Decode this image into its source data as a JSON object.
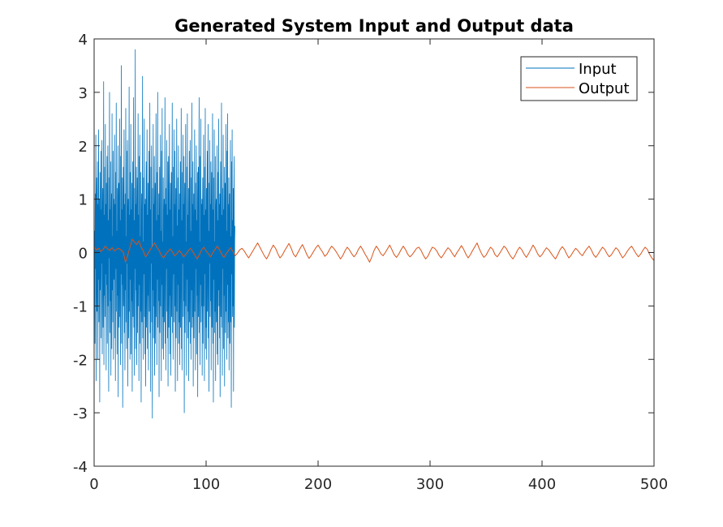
{
  "chart_data": {
    "type": "line",
    "title": "Generated System Input and Output data",
    "xlabel": "",
    "ylabel": "",
    "xlim": [
      0,
      500
    ],
    "ylim": [
      -4,
      4
    ],
    "x_ticks": [
      0,
      100,
      200,
      300,
      400,
      500
    ],
    "x_tick_labels": [
      "0",
      "100",
      "200",
      "300",
      "400",
      "500"
    ],
    "y_ticks": [
      -4,
      -3,
      -2,
      -1,
      0,
      1,
      2,
      3,
      4
    ],
    "y_tick_labels": [
      "-4",
      "-3",
      "-2",
      "-1",
      "0",
      "1",
      "2",
      "3",
      "4"
    ],
    "grid": false,
    "legend_position": "top-right",
    "legend": [
      "Input",
      "Output"
    ],
    "series": [
      {
        "name": "Input",
        "color": "#0072BD",
        "description_points": "approx. white-noise samples, amplitude mostly within ±2, peaks near 3.8",
        "x_start": 0,
        "x_step": 0.25,
        "values": [
          1.8,
          -0.9,
          0.4,
          -1.7,
          1.1,
          -0.3,
          2.2,
          -2.4,
          0.6,
          1.4,
          -1.1,
          0.2,
          1.7,
          -2.0,
          0.9,
          -0.5,
          2.3,
          -1.3,
          0.1,
          1.0,
          -2.8,
          1.5,
          -0.7,
          0.3,
          1.9,
          -1.6,
          0.8,
          -0.2,
          2.1,
          -1.9,
          0.5,
          1.2,
          -1.4,
          0.0,
          3.2,
          -2.1,
          0.7,
          -0.8,
          1.6,
          -1.2,
          2.4,
          -0.4,
          0.9,
          -2.2,
          1.3,
          -0.6,
          1.8,
          -1.7,
          0.2,
          2.0,
          -1.0,
          0.6,
          -2.6,
          1.4,
          -0.1,
          3.0,
          -1.5,
          0.8,
          -0.9,
          1.7,
          -2.3,
          0.4,
          1.1,
          -1.8,
          2.6,
          -0.7,
          0.3,
          -1.3,
          1.9,
          -2.0,
          0.6,
          1.0,
          -0.5,
          2.2,
          -1.6,
          0.9,
          -2.4,
          1.5,
          -0.3,
          2.8,
          -1.1,
          0.4,
          -1.9,
          1.2,
          -0.8,
          2.0,
          -2.7,
          0.7,
          1.3,
          -1.4,
          0.1,
          2.5,
          -1.2,
          0.6,
          -2.1,
          1.8,
          -0.4,
          3.5,
          -1.7,
          0.8,
          -0.6,
          1.4,
          -2.9,
          0.5,
          1.6,
          -1.0,
          0.2,
          2.3,
          -1.5,
          0.9,
          -2.2,
          1.1,
          -0.7,
          2.7,
          -1.3,
          0.3,
          -1.8,
          1.9,
          -0.2,
          2.1,
          -2.5,
          0.6,
          1.0,
          -1.6,
          0.4,
          3.1,
          -1.1,
          0.7,
          -2.0,
          1.5,
          -0.5,
          2.4,
          -1.9,
          0.8,
          -0.9,
          1.3,
          -2.6,
          0.2,
          1.7,
          -1.2,
          0.5,
          2.9,
          -1.4,
          0.6,
          -2.3,
          1.2,
          -0.3,
          3.8,
          -1.8,
          0.9,
          -0.7,
          1.6,
          -2.1,
          0.4,
          1.4,
          -1.5,
          0.1,
          2.6,
          -1.0,
          0.7,
          -2.4,
          1.8,
          -0.6,
          2.2,
          -1.7,
          0.3,
          -1.1,
          1.5,
          -2.8,
          0.5,
          1.1,
          -1.3,
          0.8,
          3.3,
          -1.6,
          0.2,
          -2.0,
          1.4,
          -0.4,
          2.5,
          -1.2,
          0.9,
          -1.9,
          1.0,
          -2.5,
          0.6,
          1.7,
          -1.4,
          0.3,
          2.3,
          -1.8,
          0.7,
          -0.8,
          1.3,
          -2.2,
          0.4,
          1.9,
          -1.1,
          0.5,
          2.8,
          -1.5,
          0.8,
          -2.6,
          1.6,
          -0.2,
          2.0,
          -1.3,
          0.1,
          -3.1,
          1.2,
          -0.7,
          2.4,
          -1.6,
          0.9,
          -1.0,
          1.8,
          -2.3,
          0.5,
          1.3,
          -1.7,
          0.2,
          2.6,
          -1.2,
          0.6,
          -2.1,
          1.5,
          -0.5,
          3.0,
          -1.4,
          0.7,
          -0.9,
          1.1,
          -2.7,
          0.3,
          1.6,
          -1.5,
          0.8,
          2.2,
          -1.0,
          0.4,
          -2.4,
          1.9,
          -0.6,
          2.7,
          -1.8,
          0.2,
          -1.2,
          1.4,
          -2.0,
          0.6,
          1.0,
          -1.3,
          0.5,
          2.9,
          -1.7,
          0.9,
          -2.2,
          1.2,
          -0.3,
          2.1,
          -1.1,
          0.7,
          -1.6,
          1.7,
          -2.5,
          0.4,
          1.8,
          -1.4,
          0.1,
          2.4,
          -1.9,
          0.8,
          -0.8,
          1.3,
          -2.3,
          0.5,
          1.5,
          -1.2,
          0.6,
          2.8,
          -1.5,
          0.3,
          -2.0,
          1.6,
          -0.4,
          2.3,
          -1.3,
          0.9,
          -1.0,
          1.9,
          -2.6,
          0.2,
          1.2,
          -1.6,
          0.7,
          2.5,
          -1.1,
          0.5,
          -2.4,
          1.4,
          -0.6,
          2.0,
          -1.7,
          0.8,
          -1.3,
          1.1,
          -2.1,
          0.4,
          1.7,
          -1.4,
          0.3,
          2.7,
          -1.8,
          0.6,
          -2.2,
          1.5,
          -0.2,
          2.2,
          -1.2,
          0.9,
          -0.9,
          1.8,
          -3.0,
          0.5,
          1.3,
          -1.5,
          0.8,
          2.4,
          -1.0,
          0.2,
          -2.3,
          1.6,
          -0.5,
          2.6,
          -1.6,
          0.7,
          -1.1,
          1.2,
          -2.4,
          0.3,
          1.9,
          -1.3,
          0.6,
          2.1,
          -1.7,
          0.4,
          -2.0,
          1.4,
          -0.7,
          2.8,
          -1.4,
          0.9,
          -1.2,
          1.7,
          -2.5,
          0.1,
          1.1,
          -1.6,
          0.5,
          2.3,
          -1.1,
          0.8,
          -2.2,
          1.3,
          -0.3,
          2.0,
          -1.9,
          0.6,
          -0.8,
          1.5,
          -2.7,
          0.4,
          1.6,
          -1.2,
          0.7,
          2.9,
          -1.5,
          0.2,
          -2.1,
          1.8,
          -0.6,
          2.5,
          -1.3,
          0.9,
          -1.0,
          1.0,
          -2.3,
          0.5,
          1.4,
          -1.7,
          0.3,
          2.2,
          -1.0,
          0.7,
          -2.4,
          1.6,
          -0.4,
          2.7,
          -1.8,
          0.8,
          -1.4,
          1.2,
          -2.0,
          0.6,
          1.9,
          -1.1,
          0.5,
          2.4,
          -1.6,
          0.4,
          -2.6,
          1.3,
          -0.2,
          2.1,
          -1.2,
          0.9,
          -0.9,
          1.7,
          -2.2,
          0.3,
          1.5,
          -1.4,
          0.6,
          2.6,
          -1.7,
          0.8,
          -2.8,
          1.4,
          -0.5,
          2.3,
          -1.5,
          0.2,
          -1.1,
          1.8,
          -2.4,
          0.7,
          1.0,
          -1.3,
          0.4,
          2.0,
          -1.9,
          0.6,
          -2.1,
          1.5,
          -0.7,
          2.5,
          -1.0,
          0.9,
          -1.6,
          1.1,
          -2.7,
          0.5,
          1.7,
          -1.2,
          0.3,
          2.8,
          -1.4,
          0.7,
          -2.3,
          1.2,
          -0.3,
          2.2,
          -1.8,
          0.8,
          -0.8,
          1.6,
          -2.5,
          0.2,
          1.3,
          -1.5,
          0.6,
          2.4,
          -1.1,
          0.4,
          -2.0,
          1.9,
          -0.6,
          2.6,
          -1.6,
          0.9,
          -1.3,
          1.4,
          -2.2,
          0.5,
          1.1,
          -1.7,
          0.7,
          2.1,
          -1.3,
          0.3,
          -2.9,
          1.7,
          -0.4,
          2.3,
          -1.2,
          0.6,
          -1.0,
          1.2,
          -2.6,
          0.8,
          1.8,
          -1.4,
          0.2,
          0.5
        ]
      },
      {
        "name": "Output",
        "color": "#D95319",
        "x_start": 0,
        "x_step": 2,
        "values": [
          0.1,
          0.05,
          0.08,
          0.02,
          0.06,
          0.12,
          0.07,
          0.04,
          0.09,
          0.03,
          0.06,
          0.08,
          0.05,
          0.01,
          -0.18,
          -0.05,
          0.1,
          0.25,
          0.2,
          0.15,
          0.22,
          0.1,
          0.03,
          -0.08,
          -0.02,
          0.05,
          0.12,
          0.18,
          0.1,
          0.04,
          -0.05,
          -0.1,
          -0.03,
          0.02,
          0.07,
          0.01,
          -0.06,
          -0.02,
          0.04,
          -0.01,
          -0.08,
          -0.03,
          0.03,
          0.08,
          0.02,
          -0.05,
          -0.12,
          -0.04,
          0.05,
          0.1,
          0.03,
          -0.02,
          -0.08,
          0.0,
          0.06,
          0.12,
          0.05,
          -0.03,
          -0.09,
          -0.02,
          0.04,
          0.09,
          0.02,
          -0.06,
          -0.01,
          0.05,
          0.08,
          0.03,
          -0.04,
          -0.1,
          -0.03,
          0.04,
          0.11,
          0.18,
          0.1,
          0.02,
          -0.06,
          -0.12,
          -0.04,
          0.06,
          0.14,
          0.08,
          -0.02,
          -0.1,
          -0.05,
          0.03,
          0.1,
          0.17,
          0.08,
          -0.03,
          -0.08,
          0.0,
          0.08,
          0.15,
          0.06,
          -0.04,
          -0.11,
          -0.05,
          0.02,
          0.09,
          0.14,
          0.07,
          0.01,
          -0.07,
          -0.03,
          0.05,
          0.12,
          0.08,
          0.02,
          -0.05,
          -0.12,
          -0.06,
          0.03,
          0.1,
          0.05,
          -0.02,
          -0.08,
          -0.03,
          0.06,
          0.12,
          0.05,
          -0.03,
          -0.1,
          -0.18,
          -0.08,
          0.04,
          0.12,
          0.06,
          -0.02,
          -0.06,
          0.0,
          0.07,
          0.14,
          0.05,
          -0.04,
          -0.09,
          -0.03,
          0.05,
          0.12,
          0.06,
          -0.03,
          -0.08,
          -0.04,
          0.02,
          0.08,
          0.1,
          0.04,
          -0.05,
          -0.12,
          -0.07,
          0.02,
          0.1,
          0.08,
          0.03,
          -0.05,
          -0.1,
          -0.04,
          0.03,
          0.09,
          0.05,
          -0.02,
          -0.08,
          0.0,
          0.06,
          0.13,
          0.06,
          -0.03,
          -0.1,
          -0.04,
          0.04,
          0.11,
          0.18,
          0.07,
          -0.02,
          -0.09,
          -0.05,
          0.03,
          0.1,
          0.06,
          -0.04,
          -0.08,
          -0.02,
          0.05,
          0.12,
          0.08,
          0.0,
          -0.07,
          -0.12,
          -0.05,
          0.04,
          0.1,
          0.05,
          -0.03,
          -0.09,
          -0.02,
          0.06,
          0.14,
          0.07,
          -0.02,
          -0.08,
          -0.04,
          0.03,
          0.09,
          0.05,
          -0.01,
          -0.07,
          -0.12,
          -0.04,
          0.05,
          0.11,
          0.06,
          -0.03,
          -0.1,
          -0.05,
          0.02,
          0.08,
          0.04,
          -0.02,
          -0.06,
          0.01,
          0.07,
          0.12,
          0.05,
          -0.04,
          -0.09,
          -0.03,
          0.04,
          0.1,
          0.06,
          -0.02,
          -0.08,
          -0.04,
          0.03,
          0.09,
          0.05,
          -0.03,
          -0.1,
          -0.05,
          0.02,
          0.08,
          0.12,
          0.05,
          -0.02,
          -0.08,
          -0.03,
          0.04,
          0.1,
          0.06,
          -0.03,
          -0.1,
          -0.15,
          -0.06,
          0.05,
          0.12,
          0.18,
          0.08,
          -0.02,
          -0.1,
          -0.06,
          0.03,
          0.09,
          0.05,
          -0.02,
          -0.08,
          -0.13,
          -0.05,
          0.04,
          0.1,
          0.06,
          -0.03,
          -0.09,
          -0.14,
          -0.06,
          0.05,
          0.22,
          0.1,
          0.0,
          -0.1,
          -0.2,
          -0.3,
          -0.18,
          -0.05
        ]
      }
    ]
  }
}
